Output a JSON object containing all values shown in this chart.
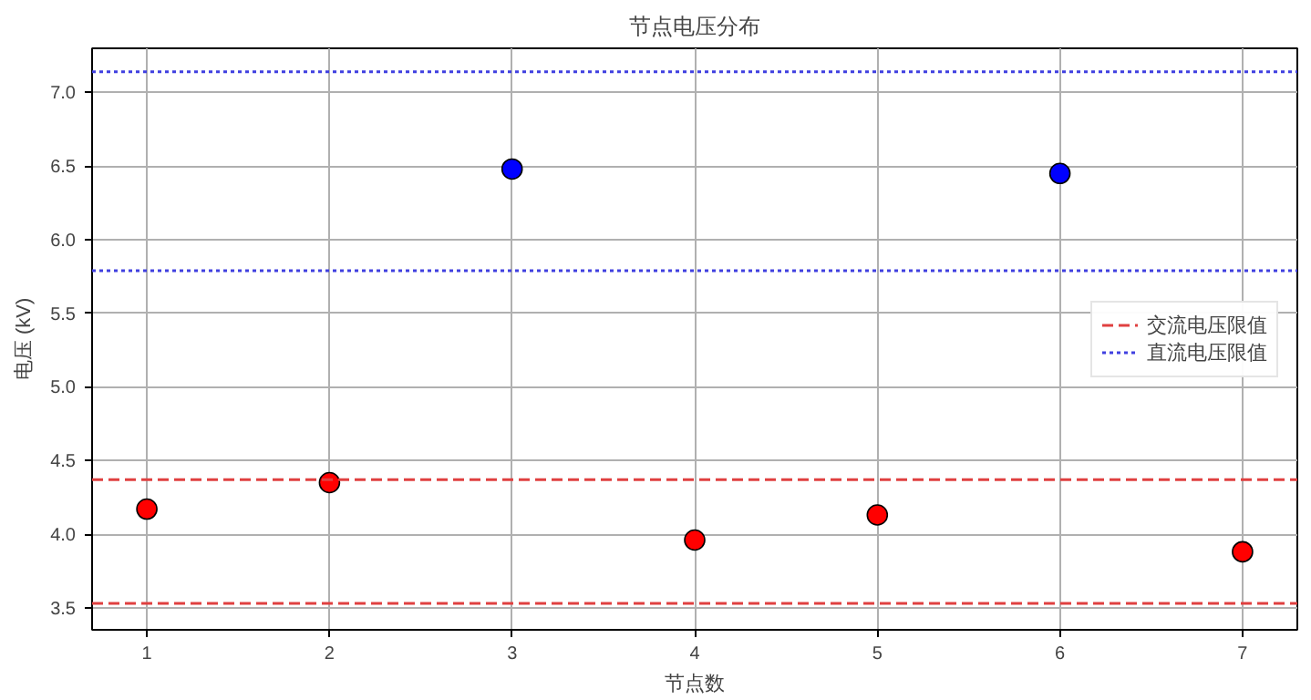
{
  "chart_data": {
    "type": "scatter",
    "title": "节点电压分布",
    "xlabel": "节点数",
    "ylabel": "电压 (kV)",
    "x": [
      1,
      2,
      3,
      4,
      5,
      6,
      7
    ],
    "values": [
      4.17,
      4.35,
      6.48,
      3.96,
      4.13,
      6.45,
      3.88
    ],
    "colors": [
      "#ff0000",
      "#ff0000",
      "#0000ff",
      "#ff0000",
      "#ff0000",
      "#0000ff",
      "#ff0000"
    ],
    "xlim": [
      0.7,
      7.3
    ],
    "xticks": [
      1,
      2,
      3,
      4,
      5,
      6,
      7
    ],
    "ylim": [
      3.35,
      7.3
    ],
    "yticks": [
      {
        "value": 3.5,
        "label": "3.5"
      },
      {
        "value": 4.0,
        "label": "4.0"
      },
      {
        "value": 4.5,
        "label": "4.5"
      },
      {
        "value": 5.0,
        "label": "5.0"
      },
      {
        "value": 5.5,
        "label": "5.5"
      },
      {
        "value": 6.0,
        "label": "6.0"
      },
      {
        "value": 6.5,
        "label": "6.5"
      },
      {
        "value": 7.0,
        "label": "7.0"
      }
    ],
    "ref_lines": [
      {
        "axis": "y",
        "value": 4.37,
        "label": "交流电压限值",
        "color": "#e04040",
        "line_style": "dashed"
      },
      {
        "axis": "y",
        "value": 3.53,
        "label": null,
        "color": "#e04040",
        "line_style": "dashed"
      },
      {
        "axis": "y",
        "value": 7.14,
        "label": "直流电压限值",
        "color": "#4040e0",
        "line_style": "dotted"
      },
      {
        "axis": "y",
        "value": 5.79,
        "label": null,
        "color": "#4040e0",
        "line_style": "dotted"
      }
    ],
    "grid": true,
    "legend": "right",
    "marker": "circle"
  }
}
